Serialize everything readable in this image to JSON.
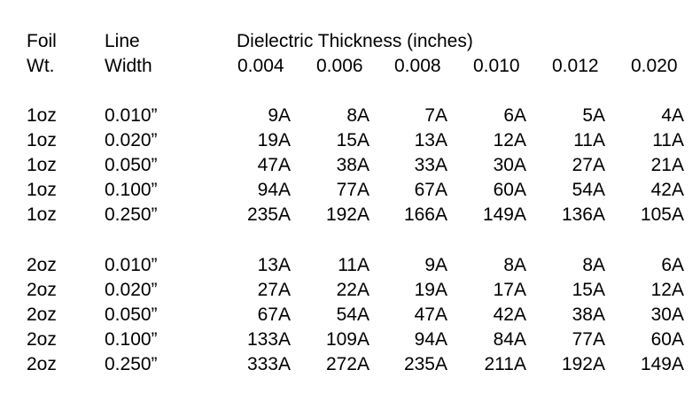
{
  "headers": {
    "foil": [
      "Foil",
      "Wt."
    ],
    "line_width": [
      "Line",
      "Width"
    ],
    "dielectric_title": "Dielectric Thickness (inches)",
    "thicknesses": [
      "0.004",
      "0.006",
      "0.008",
      "0.010",
      "0.012",
      "0.020"
    ]
  },
  "groups": [
    {
      "rows": [
        {
          "foil": "1oz",
          "width": "0.010”",
          "values": [
            "9A",
            "8A",
            "7A",
            "6A",
            "5A",
            "4A"
          ]
        },
        {
          "foil": "1oz",
          "width": "0.020”",
          "values": [
            "19A",
            "15A",
            "13A",
            "12A",
            "11A",
            "11A"
          ]
        },
        {
          "foil": "1oz",
          "width": "0.050”",
          "values": [
            "47A",
            "38A",
            "33A",
            "30A",
            "27A",
            "21A"
          ]
        },
        {
          "foil": "1oz",
          "width": "0.100”",
          "values": [
            "94A",
            "77A",
            "67A",
            "60A",
            "54A",
            "42A"
          ]
        },
        {
          "foil": "1oz",
          "width": "0.250”",
          "values": [
            "235A",
            "192A",
            "166A",
            "149A",
            "136A",
            "105A"
          ]
        }
      ]
    },
    {
      "rows": [
        {
          "foil": "2oz",
          "width": "0.010”",
          "values": [
            "13A",
            "11A",
            "9A",
            "8A",
            "8A",
            "6A"
          ]
        },
        {
          "foil": "2oz",
          "width": "0.020”",
          "values": [
            "27A",
            "22A",
            "19A",
            "17A",
            "15A",
            "12A"
          ]
        },
        {
          "foil": "2oz",
          "width": "0.050”",
          "values": [
            "67A",
            "54A",
            "47A",
            "42A",
            "38A",
            "30A"
          ]
        },
        {
          "foil": "2oz",
          "width": "0.100”",
          "values": [
            "133A",
            "109A",
            "94A",
            "84A",
            "77A",
            "60A"
          ]
        },
        {
          "foil": "2oz",
          "width": "0.250”",
          "values": [
            "333A",
            "272A",
            "235A",
            "211A",
            "192A",
            "149A"
          ]
        }
      ]
    }
  ]
}
